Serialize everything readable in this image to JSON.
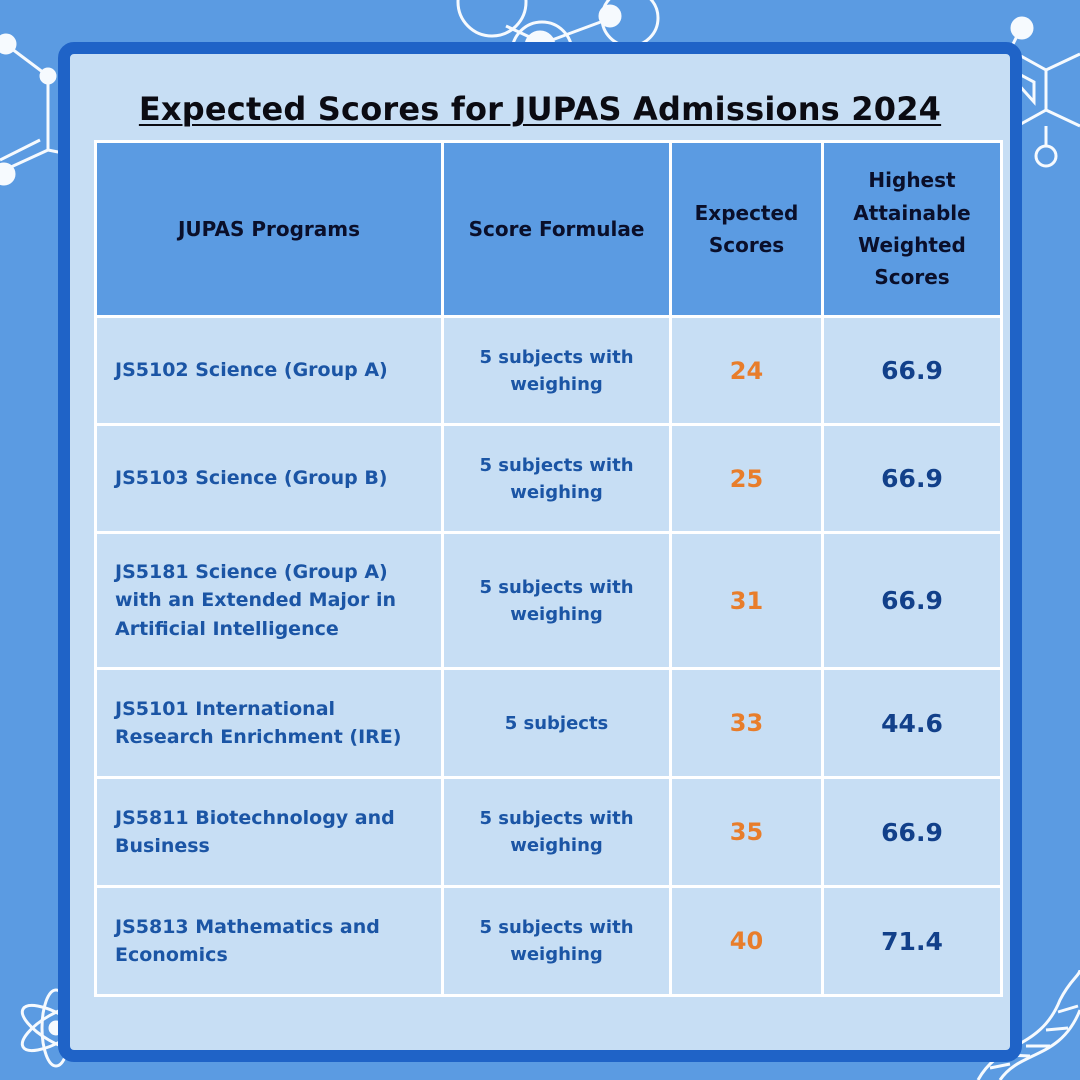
{
  "title": "Expected Scores for JUPAS Admissions 2024",
  "colors": {
    "background": "#5b9be2",
    "card_border": "#1f63c7",
    "card_fill": "#c7def4",
    "header_fill": "#5b9be2",
    "program_text": "#1b55a5",
    "expected_text": "#e87d2a",
    "highest_text": "#12408a"
  },
  "decorations": [
    "molecule-icon",
    "hexagon-molecule-icon",
    "atom-icon",
    "dna-helix-icon"
  ],
  "table": {
    "headers": {
      "programs": "JUPAS Programs",
      "formulae": "Score Formulae",
      "expected": "Expected Scores",
      "highest": "Highest Attainable Weighted Scores"
    },
    "rows": [
      {
        "program": "JS5102 Science (Group A)",
        "formula": "5 subjects with weighing",
        "expected": "24",
        "highest": "66.9"
      },
      {
        "program": "JS5103 Science (Group B)",
        "formula": "5 subjects with weighing",
        "expected": "25",
        "highest": "66.9"
      },
      {
        "program": "JS5181 Science (Group A) with an Extended Major in Artificial Intelligence",
        "formula": "5 subjects with weighing",
        "expected": "31",
        "highest": "66.9"
      },
      {
        "program": "JS5101 International Research Enrichment (IRE)",
        "formula": "5 subjects",
        "expected": "33",
        "highest": "44.6"
      },
      {
        "program": "JS5811 Biotechnology and Business",
        "formula": "5 subjects with weighing",
        "expected": "35",
        "highest": "66.9"
      },
      {
        "program": "JS5813 Mathematics and Economics",
        "formula": "5 subjects with weighing",
        "expected": "40",
        "highest": "71.4"
      }
    ]
  }
}
